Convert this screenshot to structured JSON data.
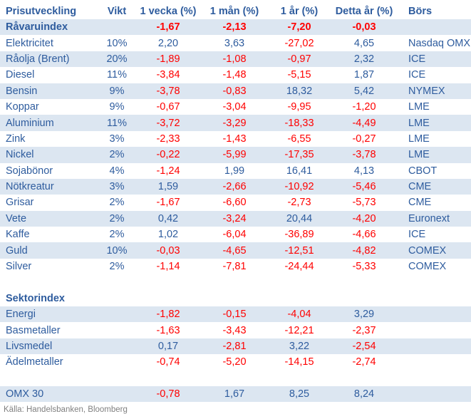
{
  "chart_data": {
    "type": "table",
    "title": "Prisutveckling",
    "columns": [
      "Prisutveckling",
      "Vikt",
      "1 vecka (%)",
      "1 mån (%)",
      "1 år (%)",
      "Detta år (%)",
      "Börs"
    ],
    "rows": [
      {
        "cells": [
          "Råvaruindex",
          "",
          "-1,67",
          "-2,13",
          "-7,20",
          "-0,03",
          ""
        ],
        "shaded": true,
        "bold": true
      },
      {
        "cells": [
          "Elektricitet",
          "10%",
          "2,20",
          "3,63",
          "-27,02",
          "4,65",
          "Nasdaq OMX"
        ],
        "shaded": false,
        "bold": false
      },
      {
        "cells": [
          "Råolja (Brent)",
          "20%",
          "-1,89",
          "-1,08",
          "-0,97",
          "2,32",
          "ICE"
        ],
        "shaded": true,
        "bold": false
      },
      {
        "cells": [
          "Diesel",
          "11%",
          "-3,84",
          "-1,48",
          "-5,15",
          "1,87",
          "ICE"
        ],
        "shaded": false,
        "bold": false
      },
      {
        "cells": [
          "Bensin",
          "9%",
          "-3,78",
          "-0,83",
          "18,32",
          "5,42",
          "NYMEX"
        ],
        "shaded": true,
        "bold": false
      },
      {
        "cells": [
          "Koppar",
          "9%",
          "-0,67",
          "-3,04",
          "-9,95",
          "-1,20",
          "LME"
        ],
        "shaded": false,
        "bold": false
      },
      {
        "cells": [
          "Aluminium",
          "11%",
          "-3,72",
          "-3,29",
          "-18,33",
          "-4,49",
          "LME"
        ],
        "shaded": true,
        "bold": false
      },
      {
        "cells": [
          "Zink",
          "3%",
          "-2,33",
          "-1,43",
          "-6,55",
          "-0,27",
          "LME"
        ],
        "shaded": false,
        "bold": false
      },
      {
        "cells": [
          "Nickel",
          "2%",
          "-0,22",
          "-5,99",
          "-17,35",
          "-3,78",
          "LME"
        ],
        "shaded": true,
        "bold": false
      },
      {
        "cells": [
          "Sojabönor",
          "4%",
          "-1,24",
          "1,99",
          "16,41",
          "4,13",
          "CBOT"
        ],
        "shaded": false,
        "bold": false
      },
      {
        "cells": [
          "Nötkreatur",
          "3%",
          "1,59",
          "-2,66",
          "-10,92",
          "-5,46",
          "CME"
        ],
        "shaded": true,
        "bold": false
      },
      {
        "cells": [
          "Grisar",
          "2%",
          "-1,67",
          "-6,60",
          "-2,73",
          "-5,73",
          "CME"
        ],
        "shaded": false,
        "bold": false
      },
      {
        "cells": [
          "Vete",
          "2%",
          "0,42",
          "-3,24",
          "20,44",
          "-4,20",
          "Euronext"
        ],
        "shaded": true,
        "bold": false
      },
      {
        "cells": [
          "Kaffe",
          "2%",
          "1,02",
          "-6,04",
          "-36,89",
          "-4,66",
          "ICE"
        ],
        "shaded": false,
        "bold": false
      },
      {
        "cells": [
          "Guld",
          "10%",
          "-0,03",
          "-4,65",
          "-12,51",
          "-4,82",
          "COMEX"
        ],
        "shaded": true,
        "bold": false
      },
      {
        "cells": [
          "Silver",
          "2%",
          "-1,14",
          "-7,81",
          "-24,44",
          "-5,33",
          "COMEX"
        ],
        "shaded": false,
        "bold": false
      },
      {
        "blank": true
      },
      {
        "cells": [
          "Sektorindex",
          "",
          "",
          "",
          "",
          "",
          ""
        ],
        "shaded": false,
        "bold": true
      },
      {
        "cells": [
          "Energi",
          "",
          "-1,82",
          "-0,15",
          "-4,04",
          "3,29",
          ""
        ],
        "shaded": true,
        "bold": false
      },
      {
        "cells": [
          "Basmetaller",
          "",
          "-1,63",
          "-3,43",
          "-12,21",
          "-2,37",
          ""
        ],
        "shaded": false,
        "bold": false
      },
      {
        "cells": [
          "Livsmedel",
          "",
          "0,17",
          "-2,81",
          "3,22",
          "-2,54",
          ""
        ],
        "shaded": true,
        "bold": false
      },
      {
        "cells": [
          "Ädelmetaller",
          "",
          "-0,74",
          "-5,20",
          "-14,15",
          "-2,74",
          ""
        ],
        "shaded": false,
        "bold": false
      },
      {
        "blank": true
      },
      {
        "cells": [
          "OMX 30",
          "",
          "-0,78",
          "1,67",
          "8,25",
          "8,24",
          ""
        ],
        "shaded": true,
        "bold": false
      }
    ],
    "layout": {
      "value_columns_format": "comma-decimal",
      "negative_color_rule": "values starting with minus are red",
      "banding": "alternating light blue"
    }
  },
  "footer": {
    "source": "Källa: Handelsbanken, Bloomberg"
  },
  "colors": {
    "text_blue": "#2E5C9E",
    "negative_red": "#FF0000",
    "row_shade": "#DCE6F1",
    "footer_gray": "#808080",
    "background": "#FFFFFF"
  }
}
